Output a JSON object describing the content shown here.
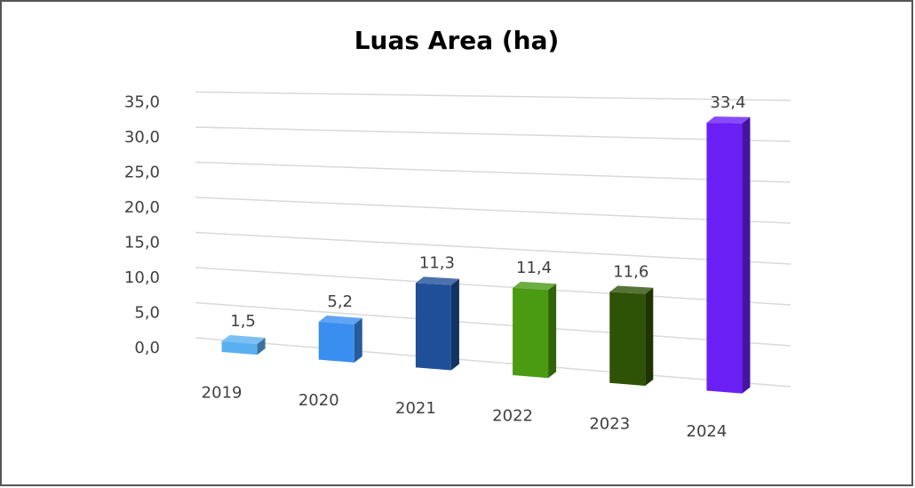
{
  "chart_data": {
    "type": "bar3d",
    "title": "Luas Area (ha)",
    "categories": [
      "2019",
      "2020",
      "2021",
      "2022",
      "2023",
      "2024"
    ],
    "values": [
      1.5,
      5.2,
      11.3,
      11.4,
      11.6,
      33.4
    ],
    "value_labels": [
      "1,5",
      "5,2",
      "11,3",
      "11,4",
      "11,6",
      "33,4"
    ],
    "colors": [
      "#5aaff0",
      "#3a8ef0",
      "#1f4f99",
      "#4a9a12",
      "#2e5206",
      "#6a1ff5"
    ],
    "ylim": [
      0,
      35
    ],
    "yticks": [
      {
        "value": 0,
        "label": "0,0"
      },
      {
        "value": 5,
        "label": "5,0"
      },
      {
        "value": 10,
        "label": "10,0"
      },
      {
        "value": 15,
        "label": "15,0"
      },
      {
        "value": 20,
        "label": "20,0"
      },
      {
        "value": 25,
        "label": "25,0"
      },
      {
        "value": 30,
        "label": "30,0"
      },
      {
        "value": 35,
        "label": "35,0"
      }
    ],
    "grid": true
  }
}
